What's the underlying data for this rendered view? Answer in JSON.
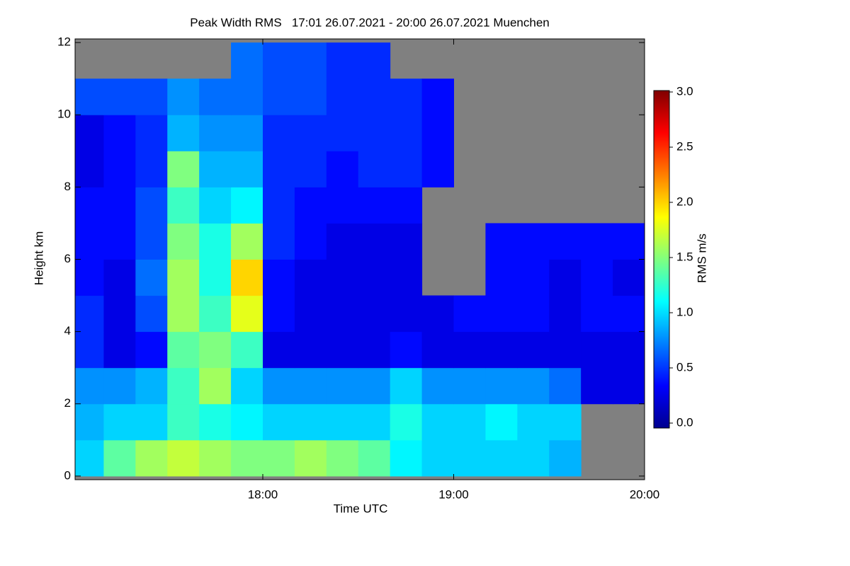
{
  "chart_data": {
    "type": "heatmap",
    "title": "Peak Width RMS   17:01 26.07.2021 - 20:00 26.07.2021 Muenchen",
    "x_label": "Time UTC",
    "y_label": "Height km",
    "x_edges": [
      1,
      10,
      20,
      30,
      40,
      50,
      60,
      70,
      80,
      90,
      100,
      110,
      120,
      130,
      140,
      150,
      160,
      170,
      180
    ],
    "y_edges": [
      0,
      1,
      2,
      3,
      4,
      5,
      6,
      7,
      8,
      9,
      10,
      11,
      12
    ],
    "z": [
      [
        1.0,
        1.4,
        1.6,
        1.7,
        1.6,
        1.5,
        1.5,
        1.6,
        1.5,
        1.4,
        1.1,
        1.0,
        1.0,
        1.0,
        1.0,
        0.9,
        null,
        null
      ],
      [
        0.9,
        1.0,
        1.0,
        1.3,
        1.2,
        1.1,
        1.0,
        1.0,
        1.0,
        1.0,
        1.2,
        1.0,
        1.0,
        1.1,
        1.0,
        1.0,
        null,
        null
      ],
      [
        0.8,
        0.8,
        0.9,
        1.3,
        1.6,
        1.0,
        0.8,
        0.8,
        0.8,
        0.8,
        1.0,
        0.8,
        0.8,
        0.8,
        0.8,
        0.7,
        0.3,
        0.3
      ],
      [
        0.5,
        0.3,
        0.4,
        1.4,
        1.5,
        1.3,
        0.3,
        0.3,
        0.3,
        0.3,
        0.4,
        0.3,
        0.3,
        0.3,
        0.3,
        0.3,
        0.3,
        0.3
      ],
      [
        0.5,
        0.3,
        0.6,
        1.6,
        1.3,
        1.8,
        0.4,
        0.3,
        0.3,
        0.3,
        0.3,
        0.3,
        0.4,
        0.4,
        0.4,
        0.3,
        0.4,
        0.4
      ],
      [
        0.4,
        0.3,
        0.7,
        1.6,
        1.2,
        2.0,
        0.4,
        0.3,
        0.3,
        0.3,
        0.3,
        null,
        null,
        0.4,
        0.4,
        0.3,
        0.4,
        0.3
      ],
      [
        0.4,
        0.4,
        0.6,
        1.5,
        1.2,
        1.6,
        0.5,
        0.4,
        0.3,
        0.3,
        0.3,
        null,
        null,
        0.4,
        0.4,
        0.4,
        0.4,
        0.4
      ],
      [
        0.4,
        0.4,
        0.6,
        1.3,
        1.0,
        1.1,
        0.5,
        0.4,
        0.4,
        0.4,
        0.4,
        null,
        null,
        null,
        null,
        null,
        null,
        null
      ],
      [
        0.3,
        0.4,
        0.5,
        1.5,
        0.9,
        0.9,
        0.5,
        0.5,
        0.4,
        0.5,
        0.5,
        0.4,
        null,
        null,
        null,
        null,
        null,
        null
      ],
      [
        0.3,
        0.4,
        0.5,
        0.9,
        0.8,
        0.8,
        0.5,
        0.5,
        0.5,
        0.5,
        0.5,
        0.4,
        null,
        null,
        null,
        null,
        null,
        null
      ],
      [
        0.6,
        0.6,
        0.6,
        0.8,
        0.7,
        0.7,
        0.6,
        0.6,
        0.5,
        0.5,
        0.5,
        0.4,
        null,
        null,
        null,
        null,
        null,
        null
      ],
      [
        null,
        null,
        null,
        null,
        null,
        0.7,
        0.6,
        0.6,
        0.5,
        0.5,
        null,
        null,
        null,
        null,
        null,
        null,
        null,
        null
      ]
    ],
    "xlim": [
      1,
      180
    ],
    "xticks": [
      {
        "value": 60,
        "label": "18:00"
      },
      {
        "value": 120,
        "label": "19:00"
      },
      {
        "value": 180,
        "label": "20:00"
      }
    ],
    "ylim": [
      -0.1,
      12.1
    ],
    "yticks": [
      0,
      2,
      4,
      6,
      8,
      10,
      12
    ],
    "missing_color": "#808080",
    "colormap": "jet",
    "colorbar": {
      "label": "RMS m/s",
      "lim": [
        0,
        3
      ],
      "ticks": [
        {
          "value": 0,
          "label": "0.0"
        },
        0.5,
        {
          "value": 1,
          "label": "1.0"
        },
        1.5,
        {
          "value": 2,
          "label": "2.0"
        },
        2.5,
        {
          "value": 3,
          "label": "3.0"
        }
      ]
    }
  }
}
